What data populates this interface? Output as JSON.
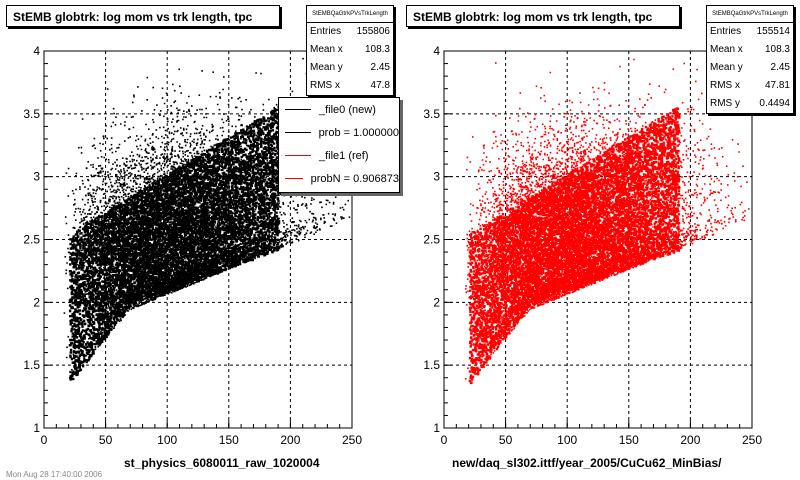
{
  "chart_data": [
    {
      "type": "scatter",
      "title": "StEMB globtrk: log mom vs trk length, tpc",
      "xlabel": "st_physics_6080011_raw_1020004",
      "ylabel": "",
      "xlim": [
        0,
        250
      ],
      "ylim": [
        1,
        4
      ],
      "xticks": [
        0,
        50,
        100,
        150,
        200,
        250
      ],
      "yticks": [
        1,
        1.5,
        2,
        2.5,
        3,
        3.5,
        4
      ],
      "grid": true,
      "color": "#000000",
      "stats": {
        "name": "StEMBQaGtrkPVsTrkLength",
        "entries": [
          {
            "label": "Entries",
            "value": "155806"
          },
          {
            "label": "Mean x",
            "value": "108.3"
          },
          {
            "label": "Mean y",
            "value": "2.45"
          },
          {
            "label": "RMS x",
            "value": "47.8"
          }
        ]
      },
      "legend": {
        "position": "right",
        "entries": [
          {
            "label": "_file0 (new)",
            "color": "#000000"
          },
          {
            "label": "prob = 1.000000",
            "color": "#000000"
          },
          {
            "label": "_file1 (ref)",
            "color": "#ff0000"
          },
          {
            "label": "probN = 0.906873",
            "color": "#ff0000"
          }
        ]
      }
    },
    {
      "type": "scatter",
      "title": "StEMB globtrk: log mom vs trk length, tpc",
      "xlabel": "new/daq_sl302.ittf/year_2005/CuCu62_MinBias/",
      "ylabel": "",
      "xlim": [
        0,
        250
      ],
      "ylim": [
        1,
        4
      ],
      "xticks": [
        0,
        50,
        100,
        150,
        200,
        250
      ],
      "yticks": [
        1,
        1.5,
        2,
        2.5,
        3,
        3.5,
        4
      ],
      "grid": true,
      "color": "#ff0000",
      "stats": {
        "name": "StEMBQaGtrkPVsTrkLength",
        "entries": [
          {
            "label": "Entries",
            "value": "155514"
          },
          {
            "label": "Mean x",
            "value": "108.3"
          },
          {
            "label": "Mean y",
            "value": "2.45"
          },
          {
            "label": "RMS x",
            "value": "47.81"
          },
          {
            "label": "RMS y",
            "value": "0.4494"
          }
        ]
      }
    }
  ],
  "footer_text": "Mon Aug 28 17:40:00 2006"
}
